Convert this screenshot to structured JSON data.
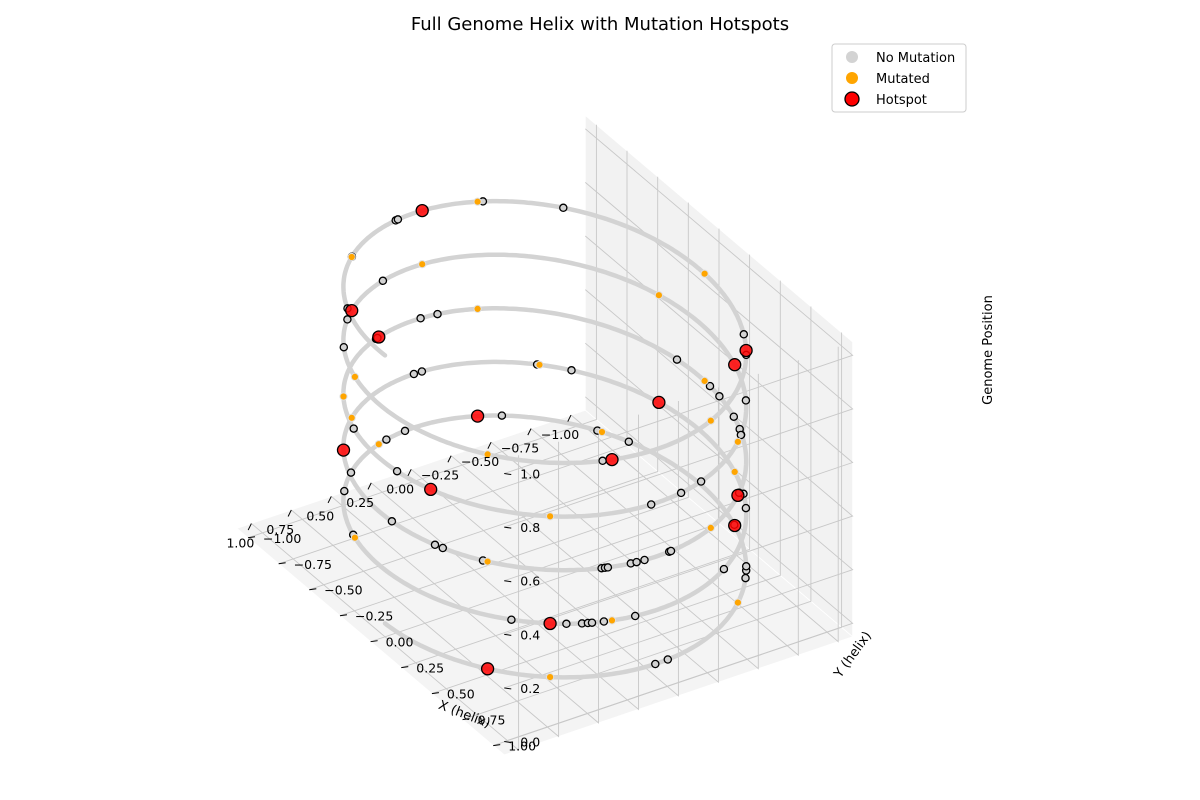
{
  "chart_data": {
    "type": "scatter",
    "subtype": "3d-helix",
    "title": "Full Genome Helix with Mutation Hotspots",
    "xlabel": "X (helix)",
    "ylabel": "Y (helix)",
    "zlabel": "Genome Position",
    "xlim": [
      -1.0,
      1.0
    ],
    "ylim": [
      -1.0,
      1.0
    ],
    "zlim": [
      0.0,
      1.0
    ],
    "xticks": [
      "−1.00",
      "−0.75",
      "−0.50",
      "−0.25",
      "0.00",
      "0.25",
      "0.50",
      "0.75",
      "1.00"
    ],
    "yticks": [
      "−1.00",
      "−0.75",
      "−0.50",
      "−0.25",
      "0.00",
      "0.25",
      "0.50",
      "0.75",
      "1.00"
    ],
    "zticks": [
      "0.0",
      "0.2",
      "0.4",
      "0.6",
      "0.8",
      "1.0"
    ],
    "grid": true,
    "legend_position": "top-right",
    "helix_turns": 5,
    "legend": [
      {
        "label": "No Mutation",
        "color": "#d3d3d3"
      },
      {
        "label": "Mutated",
        "color": "#ffa500"
      },
      {
        "label": "Hotspot",
        "color": "#ff0000",
        "edge": "#000000"
      }
    ],
    "series": [
      {
        "name": "No Mutation",
        "color": "#d3d3d3",
        "description": "continuous helix of sample points x=cos(2πt·5), y=sin(2πt·5), z=t"
      },
      {
        "name": "Mutated",
        "color": "#ffa500",
        "z": [
          0.03,
          0.07,
          0.12,
          0.16,
          0.19,
          0.24,
          0.29,
          0.33,
          0.37,
          0.42,
          0.46,
          0.5,
          0.54,
          0.58,
          0.63,
          0.67,
          0.71,
          0.75,
          0.79,
          0.82,
          0.86,
          0.9,
          0.94,
          0.97
        ]
      },
      {
        "name": "Hotspot",
        "color": "#ff0000",
        "z": [
          0.02,
          0.09,
          0.14,
          0.23,
          0.31,
          0.38,
          0.47,
          0.56,
          0.61,
          0.69,
          0.77,
          0.84,
          0.88,
          0.95
        ]
      }
    ]
  }
}
